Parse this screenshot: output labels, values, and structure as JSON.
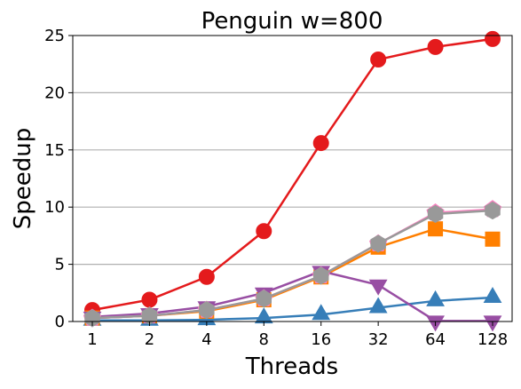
{
  "chart_data": {
    "type": "line",
    "title": "Penguin w=800",
    "xlabel": "Threads",
    "ylabel": "Speedup",
    "categories": [
      "1",
      "2",
      "4",
      "8",
      "16",
      "32",
      "64",
      "128"
    ],
    "ylim": [
      0,
      25
    ],
    "yticks": [
      0,
      5,
      10,
      15,
      20,
      25
    ],
    "grid": "horizontal",
    "series": [
      {
        "color": "#e41a1c",
        "marker": "circle",
        "values": [
          1.0,
          1.9,
          3.9,
          7.9,
          15.6,
          22.9,
          24.0,
          24.7
        ]
      },
      {
        "color": "#377eb8",
        "marker": "triangle-up",
        "values": [
          0.1,
          0.1,
          0.15,
          0.3,
          0.6,
          1.2,
          1.8,
          2.1
        ]
      },
      {
        "color": "#ff7f00",
        "marker": "square",
        "values": [
          0.3,
          0.5,
          0.9,
          1.9,
          3.9,
          6.5,
          8.1,
          7.2
        ]
      },
      {
        "color": "#984ea3",
        "marker": "triangle-down",
        "values": [
          0.4,
          0.7,
          1.3,
          2.5,
          4.4,
          3.2,
          0.05,
          0.05
        ]
      },
      {
        "color": "#f781bf",
        "marker": "pentagon",
        "values": [
          0.3,
          0.5,
          1.0,
          2.0,
          4.0,
          6.8,
          9.5,
          9.8
        ]
      },
      {
        "color": "#999999",
        "marker": "hexagon",
        "values": [
          0.3,
          0.5,
          1.0,
          2.0,
          4.0,
          6.8,
          9.4,
          9.7
        ]
      }
    ]
  }
}
